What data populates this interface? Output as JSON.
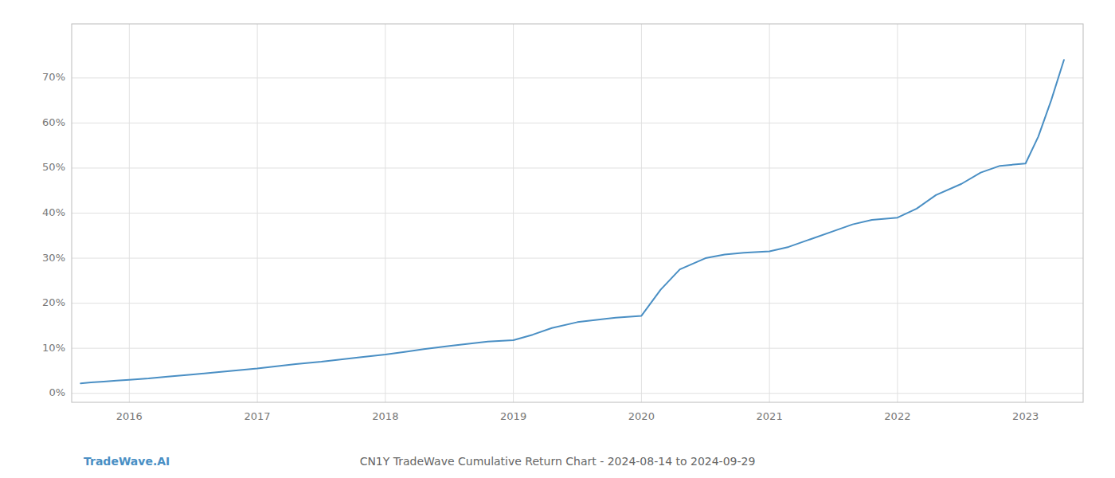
{
  "chart_data": {
    "type": "line",
    "title": "CN1Y TradeWave Cumulative Return Chart - 2024-08-14 to 2024-09-29",
    "annotations": [
      "TradeWave.AI"
    ],
    "color": "#4a8fc4",
    "grid": true,
    "xlim": [
      2015.55,
      2023.45
    ],
    "ylim": [
      -0.02,
      0.82
    ],
    "xticks": [
      2016,
      2017,
      2018,
      2019,
      2020,
      2021,
      2022,
      2023
    ],
    "yticks": [
      {
        "value": 0.0,
        "label": "0%"
      },
      {
        "value": 0.1,
        "label": "10%"
      },
      {
        "value": 0.2,
        "label": "20%"
      },
      {
        "value": 0.3,
        "label": "30%"
      },
      {
        "value": 0.4,
        "label": "40%"
      },
      {
        "value": 0.5,
        "label": "50%"
      },
      {
        "value": 0.6,
        "label": "60%"
      },
      {
        "value": 0.7,
        "label": "70%"
      }
    ],
    "x": [
      2015.62,
      2015.7,
      2015.8,
      2015.9,
      2016.0,
      2016.15,
      2016.3,
      2016.5,
      2016.65,
      2016.8,
      2017.0,
      2017.15,
      2017.3,
      2017.5,
      2017.65,
      2017.8,
      2018.0,
      2018.15,
      2018.3,
      2018.5,
      2018.65,
      2018.8,
      2019.0,
      2019.15,
      2019.3,
      2019.5,
      2019.65,
      2019.8,
      2020.0,
      2020.15,
      2020.3,
      2020.5,
      2020.65,
      2020.8,
      2021.0,
      2021.15,
      2021.3,
      2021.5,
      2021.65,
      2021.8,
      2022.0,
      2022.15,
      2022.3,
      2022.5,
      2022.65,
      2022.8,
      2023.0,
      2023.1,
      2023.2,
      2023.3
    ],
    "values": [
      0.022,
      0.024,
      0.026,
      0.028,
      0.03,
      0.033,
      0.037,
      0.042,
      0.046,
      0.05,
      0.055,
      0.06,
      0.065,
      0.07,
      0.075,
      0.08,
      0.086,
      0.092,
      0.098,
      0.105,
      0.11,
      0.115,
      0.118,
      0.13,
      0.145,
      0.158,
      0.163,
      0.168,
      0.172,
      0.23,
      0.275,
      0.3,
      0.308,
      0.312,
      0.315,
      0.325,
      0.34,
      0.36,
      0.375,
      0.385,
      0.39,
      0.41,
      0.44,
      0.465,
      0.49,
      0.505,
      0.51,
      0.57,
      0.65,
      0.74
    ]
  }
}
